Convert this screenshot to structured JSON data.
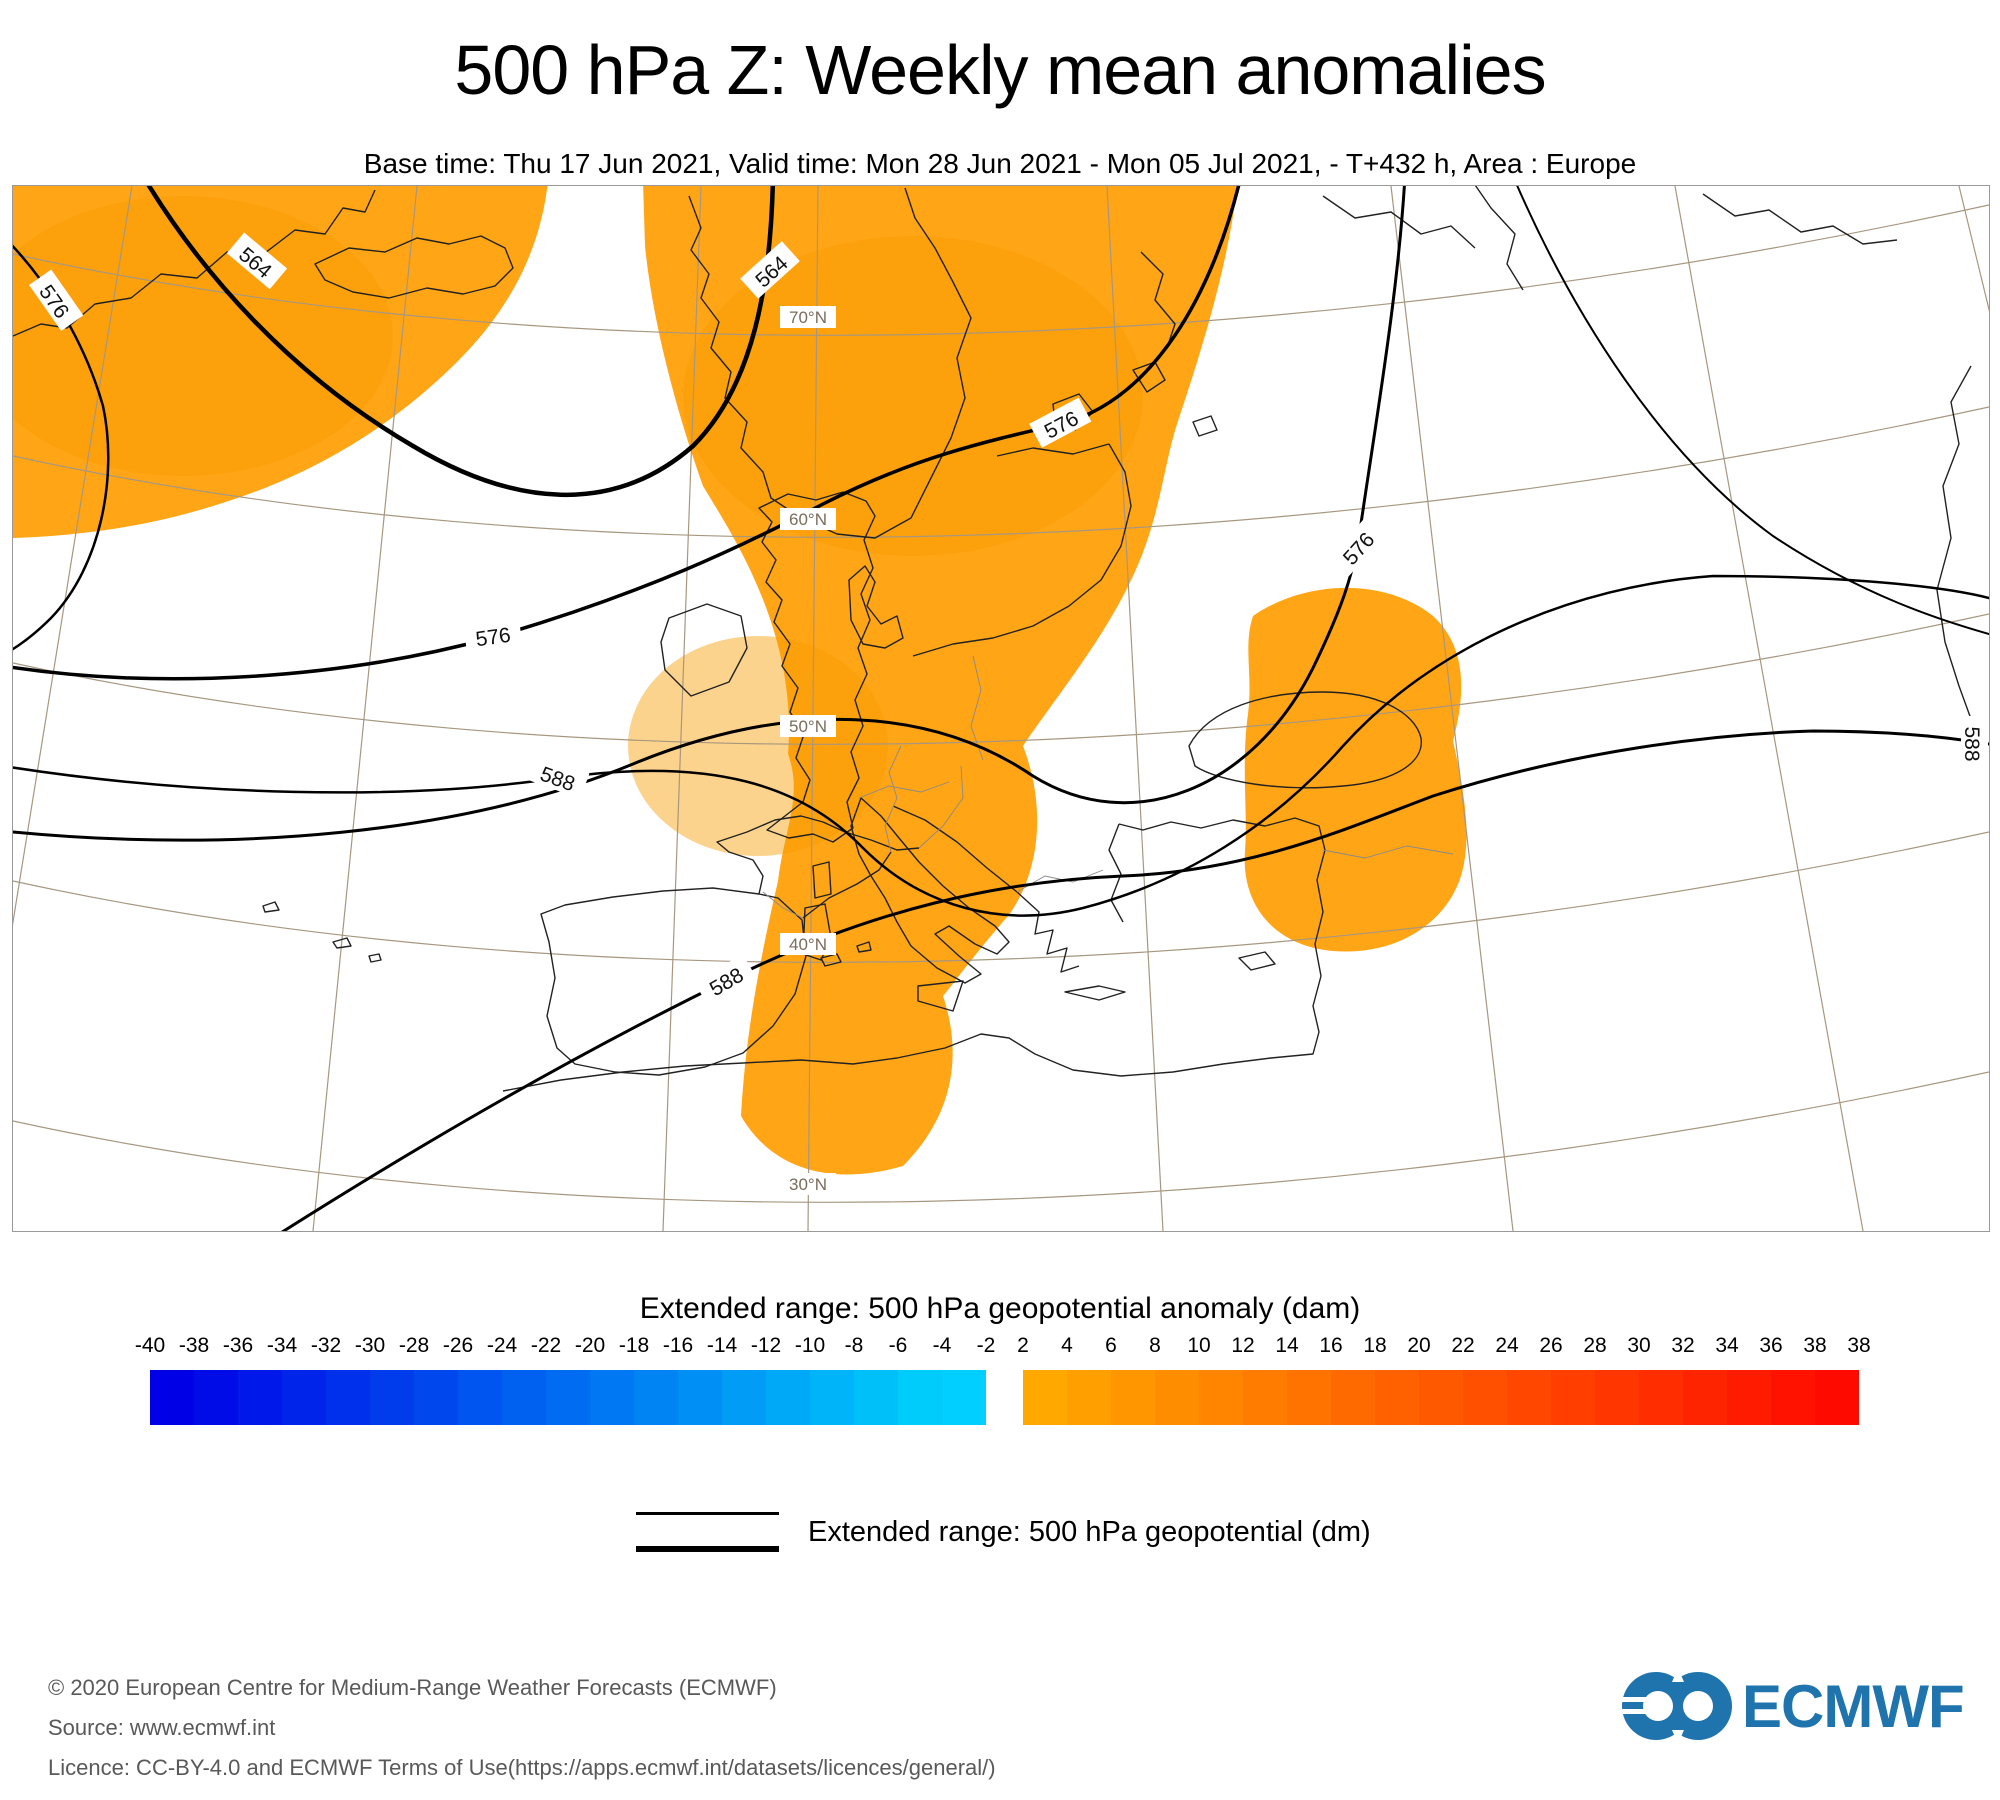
{
  "title": "500 hPa Z: Weekly mean anomalies",
  "subtitle": "Base time: Thu 17 Jun 2021, Valid time: Mon 28 Jun 2021 - Mon 05 Jul 2021, - T+432 h, Area : Europe",
  "map": {
    "latitude_labels": [
      "70°N",
      "60°N",
      "50°N",
      "40°N",
      "30°N"
    ],
    "contour_labels": [
      "576",
      "564",
      "564",
      "576",
      "576",
      "576",
      "588",
      "588",
      "588"
    ],
    "colors": {
      "anomaly": "#FFA516",
      "anomaly_dark": "#F99E00",
      "graticule": "#A79780",
      "coastline": "#222222",
      "border_lines": "#8A8A8A",
      "contour": "#000000",
      "frame": "#999999",
      "lat_label_text": "#7B6C5C"
    }
  },
  "legend": {
    "title": "Extended range: 500 hPa geopotential anomaly (dam)",
    "negative_ticks": [
      "-40",
      "-38",
      "-36",
      "-34",
      "-32",
      "-30",
      "-28",
      "-26",
      "-24",
      "-22",
      "-20",
      "-18",
      "-16",
      "-14",
      "-12",
      "-10",
      "-8",
      "-6",
      "-4",
      "-2"
    ],
    "positive_ticks": [
      "2",
      "4",
      "6",
      "8",
      "10",
      "12",
      "14",
      "16",
      "18",
      "20",
      "22",
      "24",
      "26",
      "28",
      "30",
      "32",
      "34",
      "36",
      "38",
      "38"
    ],
    "blue_colors": [
      "#0000E6",
      "#000CE7",
      "#0018E9",
      "#0024EA",
      "#0030EB",
      "#003CEC",
      "#0048EE",
      "#0054EF",
      "#0060F0",
      "#006CF1",
      "#0078F3",
      "#0084F4",
      "#0090F5",
      "#009CF6",
      "#00A8F8",
      "#00B4F9",
      "#00C0FA",
      "#00CCFC",
      "#00CFFF"
    ],
    "orange_colors": [
      "#FFA800",
      "#FF9F00",
      "#FF9600",
      "#FF8D00",
      "#FF8500",
      "#FF7C00",
      "#FF7300",
      "#FF6A00",
      "#FF6100",
      "#FF5900",
      "#FF5000",
      "#FF4700",
      "#FF3E00",
      "#FF3600",
      "#FF2D00",
      "#FF2400",
      "#FF1B00",
      "#FF1300",
      "#FF0A00"
    ],
    "line_label": "Extended range: 500 hPa geopotential (dm)"
  },
  "footer": {
    "copyright": "© 2020 European Centre for Medium-Range Weather Forecasts (ECMWF)",
    "source": "Source: www.ecmwf.int",
    "licence": "Licence: CC-BY-4.0 and ECMWF Terms of Use(https://apps.ecmwf.int/datasets/licences/general/)",
    "logo_text": "ECMWF",
    "logo_color": "#1F74AD"
  },
  "chart_data": {
    "type": "heatmap",
    "title": "500 hPa Z: Weekly mean anomalies",
    "colorbar_label": "Extended range: 500 hPa geopotential anomaly (dam)",
    "colorbar_units": "dam",
    "colorbar_range": [
      -40,
      38
    ],
    "colorbar_interval": 2,
    "colorbar_gap": [
      -2,
      2
    ],
    "negative_ticks": [
      -40,
      -38,
      -36,
      -34,
      -32,
      -30,
      -28,
      -26,
      -24,
      -22,
      -20,
      -18,
      -16,
      -14,
      -12,
      -10,
      -8,
      -6,
      -4,
      -2
    ],
    "positive_ticks": [
      2,
      4,
      6,
      8,
      10,
      12,
      14,
      16,
      18,
      20,
      22,
      24,
      26,
      28,
      30,
      32,
      34,
      36,
      38,
      38
    ],
    "contour_label_values": [
      564,
      576,
      588
    ],
    "contour_units": "dm",
    "legend_line_label": "Extended range: 500 hPa geopotential (dm)",
    "anomaly_sign_shown": "positive (orange) regions over NE Atlantic, Scandinavia, central/southern Europe and the Middle East"
  }
}
